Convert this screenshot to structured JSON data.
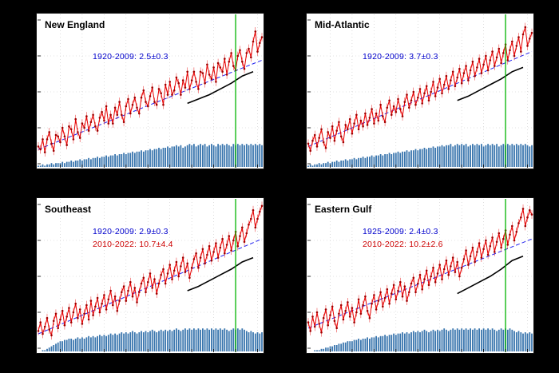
{
  "figure": {
    "background": "#000000",
    "panel_background": "#ffffff"
  },
  "colors": {
    "series": "#e60000",
    "marker": "#a00000",
    "trend": "#2222ee",
    "bars": "#3a76ae",
    "smoothed": "#000000",
    "epoch_line": "#00b400",
    "annotation_blue": "#0000cc",
    "annotation_red": "#cc0000",
    "grid": "#c8c8c8"
  },
  "chart_data": [
    {
      "type": "line",
      "title": "New England",
      "annotations": [
        {
          "text": "1920-2009: 2.5±0.3",
          "color": "#0000cc"
        }
      ],
      "x_start": 1920,
      "x_end": 2022,
      "xlim": [
        1920,
        2022
      ],
      "ylim": [
        0,
        100
      ],
      "grid": true,
      "legend": false,
      "epoch_year": 2010,
      "error": 3,
      "trend": {
        "x0": 1920,
        "y0": 10,
        "x1": 2022,
        "y1": 72
      },
      "values": [
        12,
        10,
        17,
        8,
        17,
        22,
        14,
        9,
        20,
        19,
        15,
        25,
        19,
        13,
        26,
        24,
        17,
        31,
        22,
        18,
        28,
        25,
        33,
        23,
        29,
        34,
        26,
        23,
        32,
        36,
        30,
        40,
        28,
        34,
        28,
        39,
        34,
        43,
        34,
        29,
        40,
        45,
        35,
        41,
        46,
        39,
        35,
        46,
        51,
        43,
        40,
        47,
        53,
        43,
        41,
        52,
        49,
        41,
        55,
        48,
        57,
        48,
        51,
        60,
        56,
        48,
        58,
        53,
        64,
        52,
        58,
        64,
        57,
        52,
        64,
        63,
        56,
        69,
        62,
        59,
        67,
        57,
        70,
        67,
        64,
        73,
        62,
        71,
        77,
        68,
        65,
        75,
        79,
        71,
        66,
        77,
        80,
        74,
        85,
        92,
        78,
        84,
        88
      ],
      "bars": [
        1,
        1,
        2,
        1,
        2,
        2,
        3,
        2,
        3,
        3,
        3,
        4,
        3,
        4,
        4,
        5,
        4,
        5,
        5,
        6,
        5,
        6,
        6,
        7,
        6,
        7,
        7,
        8,
        7,
        8,
        8,
        9,
        8,
        9,
        9,
        10,
        9,
        10,
        10,
        11,
        10,
        11,
        11,
        12,
        11,
        12,
        12,
        13,
        12,
        13,
        13,
        14,
        13,
        14,
        14,
        15,
        14,
        15,
        15,
        16,
        15,
        16,
        16,
        17,
        16,
        17,
        15,
        16,
        17,
        18,
        17,
        18,
        16,
        17,
        18,
        17,
        18,
        16,
        17,
        18,
        17,
        16,
        18,
        17,
        18,
        17,
        18,
        17,
        16,
        18,
        17,
        18,
        17,
        18,
        17,
        18,
        17,
        18,
        17,
        18,
        17,
        18,
        17
      ],
      "smoothed": {
        "years": [
          1988,
          1993,
          1998,
          2003,
          2008,
          2013,
          2018
        ],
        "values": [
          42,
          45,
          48,
          52,
          56,
          61,
          64
        ]
      }
    },
    {
      "type": "line",
      "title": "Mid-Atlantic",
      "annotations": [
        {
          "text": "1920-2009: 3.7±0.3",
          "color": "#0000cc"
        }
      ],
      "x_start": 1920,
      "x_end": 2022,
      "xlim": [
        1920,
        2022
      ],
      "ylim": [
        0,
        100
      ],
      "grid": true,
      "legend": false,
      "epoch_year": 2010,
      "error": 3,
      "trend": {
        "x0": 1920,
        "y0": 12,
        "x1": 2022,
        "y1": 78
      },
      "values": [
        14,
        9,
        16,
        20,
        12,
        18,
        24,
        15,
        11,
        22,
        18,
        26,
        16,
        23,
        29,
        19,
        15,
        27,
        24,
        31,
        21,
        28,
        34,
        24,
        30,
        26,
        35,
        27,
        32,
        38,
        28,
        35,
        30,
        41,
        33,
        29,
        39,
        44,
        34,
        40,
        36,
        45,
        38,
        33,
        43,
        48,
        39,
        44,
        50,
        41,
        46,
        52,
        42,
        49,
        54,
        44,
        50,
        57,
        47,
        53,
        59,
        49,
        55,
        61,
        52,
        58,
        64,
        54,
        60,
        66,
        56,
        63,
        68,
        58,
        65,
        71,
        61,
        67,
        73,
        63,
        69,
        75,
        65,
        72,
        78,
        68,
        74,
        80,
        70,
        77,
        83,
        72,
        79,
        85,
        75,
        82,
        88,
        78,
        90,
        95,
        82,
        87,
        91
      ],
      "bars": [
        1,
        2,
        1,
        2,
        2,
        3,
        2,
        3,
        3,
        4,
        3,
        4,
        4,
        5,
        4,
        5,
        5,
        6,
        5,
        6,
        6,
        7,
        6,
        7,
        7,
        8,
        7,
        8,
        8,
        9,
        8,
        9,
        9,
        10,
        9,
        10,
        10,
        11,
        10,
        11,
        11,
        12,
        11,
        12,
        12,
        13,
        12,
        13,
        13,
        14,
        13,
        14,
        14,
        15,
        14,
        15,
        15,
        16,
        15,
        16,
        16,
        17,
        16,
        17,
        17,
        18,
        16,
        17,
        18,
        17,
        18,
        17,
        18,
        16,
        17,
        18,
        17,
        18,
        17,
        18,
        16,
        17,
        18,
        17,
        18,
        17,
        18,
        16,
        17,
        18,
        17,
        18,
        17,
        18,
        17,
        18,
        17,
        18,
        17,
        18,
        17,
        16,
        17
      ],
      "smoothed": {
        "years": [
          1988,
          1993,
          1998,
          2003,
          2008,
          2013,
          2018
        ],
        "values": [
          44,
          47,
          51,
          55,
          59,
          64,
          67
        ]
      }
    },
    {
      "type": "line",
      "title": "Southeast",
      "annotations": [
        {
          "text": "1920-2009:  2.9±0.3",
          "color": "#0000cc"
        },
        {
          "text": "2010-2022: 10.7±4.4",
          "color": "#cc0000"
        }
      ],
      "x_start": 1920,
      "x_end": 2022,
      "xlim": [
        1920,
        2022
      ],
      "ylim": [
        0,
        100
      ],
      "grid": true,
      "legend": false,
      "epoch_year": 2010,
      "error": 3,
      "trend": {
        "x0": 1920,
        "y0": 10,
        "x1": 2022,
        "y1": 76
      },
      "values": [
        12,
        18,
        10,
        15,
        21,
        13,
        9,
        19,
        24,
        14,
        20,
        26,
        16,
        22,
        28,
        18,
        25,
        31,
        21,
        27,
        17,
        24,
        30,
        20,
        33,
        23,
        29,
        35,
        25,
        31,
        37,
        27,
        34,
        40,
        30,
        36,
        26,
        33,
        39,
        43,
        33,
        40,
        46,
        36,
        42,
        32,
        39,
        45,
        49,
        39,
        46,
        52,
        42,
        48,
        38,
        45,
        51,
        55,
        45,
        52,
        58,
        48,
        54,
        60,
        50,
        57,
        63,
        53,
        59,
        49,
        56,
        62,
        66,
        56,
        63,
        69,
        59,
        65,
        71,
        61,
        67,
        73,
        63,
        70,
        76,
        66,
        72,
        78,
        68,
        75,
        81,
        71,
        78,
        84,
        74,
        80,
        86,
        90,
        96,
        84,
        90,
        95,
        99
      ],
      "bars": [
        0,
        0,
        1,
        1,
        2,
        3,
        4,
        5,
        6,
        7,
        8,
        8,
        9,
        9,
        10,
        10,
        9,
        10,
        11,
        10,
        11,
        10,
        11,
        12,
        11,
        12,
        11,
        12,
        13,
        12,
        13,
        12,
        13,
        14,
        13,
        14,
        13,
        14,
        15,
        14,
        15,
        14,
        15,
        16,
        15,
        14,
        15,
        16,
        15,
        16,
        15,
        16,
        17,
        16,
        15,
        16,
        17,
        16,
        17,
        16,
        17,
        16,
        17,
        18,
        17,
        16,
        17,
        18,
        17,
        18,
        17,
        18,
        17,
        18,
        17,
        18,
        17,
        18,
        17,
        18,
        17,
        18,
        17,
        18,
        17,
        18,
        17,
        16,
        17,
        18,
        17,
        18,
        17,
        18,
        17,
        16,
        15,
        16,
        15,
        14,
        15,
        14,
        15
      ],
      "smoothed": {
        "years": [
          1988,
          1993,
          1998,
          2003,
          2008,
          2013,
          2018
        ],
        "values": [
          40,
          43,
          47,
          51,
          55,
          60,
          63
        ]
      }
    },
    {
      "type": "line",
      "title": "Eastern Gulf",
      "annotations": [
        {
          "text": "1925-2009:  2.4±0.3",
          "color": "#0000cc"
        },
        {
          "text": "2010-2022: 10.2±2.6",
          "color": "#cc0000"
        }
      ],
      "x_start": 1920,
      "x_end": 2022,
      "xlim": [
        1920,
        2022
      ],
      "ylim": [
        0,
        100
      ],
      "grid": true,
      "legend": false,
      "epoch_year": 2010,
      "error": 3,
      "trend": {
        "x0": 1920,
        "y0": 14,
        "x1": 2022,
        "y1": 76
      },
      "values": [
        18,
        12,
        22,
        15,
        25,
        17,
        11,
        21,
        27,
        16,
        23,
        29,
        19,
        14,
        24,
        30,
        20,
        26,
        32,
        22,
        28,
        18,
        25,
        34,
        24,
        30,
        36,
        26,
        21,
        31,
        37,
        27,
        33,
        39,
        29,
        35,
        41,
        31,
        38,
        44,
        34,
        40,
        46,
        36,
        43,
        33,
        39,
        45,
        49,
        39,
        45,
        51,
        41,
        48,
        54,
        44,
        50,
        56,
        46,
        52,
        58,
        48,
        55,
        61,
        51,
        57,
        63,
        53,
        60,
        50,
        56,
        62,
        68,
        58,
        64,
        70,
        60,
        67,
        73,
        63,
        69,
        75,
        65,
        71,
        77,
        67,
        74,
        80,
        70,
        76,
        82,
        72,
        79,
        85,
        75,
        81,
        87,
        91,
        97,
        85,
        91,
        96,
        93
      ],
      "bars": [
        0,
        0,
        0,
        1,
        1,
        1,
        2,
        2,
        3,
        3,
        4,
        4,
        5,
        5,
        6,
        6,
        7,
        7,
        8,
        8,
        8,
        9,
        9,
        10,
        9,
        10,
        10,
        11,
        10,
        11,
        11,
        12,
        11,
        12,
        12,
        13,
        12,
        13,
        13,
        14,
        13,
        14,
        14,
        15,
        14,
        15,
        14,
        15,
        16,
        15,
        16,
        15,
        16,
        17,
        16,
        15,
        16,
        17,
        16,
        17,
        16,
        17,
        18,
        17,
        16,
        17,
        18,
        17,
        18,
        17,
        18,
        17,
        18,
        17,
        18,
        17,
        18,
        17,
        18,
        17,
        18,
        17,
        18,
        17,
        18,
        17,
        16,
        17,
        18,
        17,
        18,
        17,
        18,
        17,
        16,
        15,
        16,
        15,
        14,
        15,
        14,
        15,
        14
      ],
      "smoothed": {
        "years": [
          1988,
          1993,
          1998,
          2003,
          2008,
          2013,
          2018
        ],
        "values": [
          38,
          42,
          46,
          50,
          55,
          61,
          64
        ]
      }
    }
  ]
}
